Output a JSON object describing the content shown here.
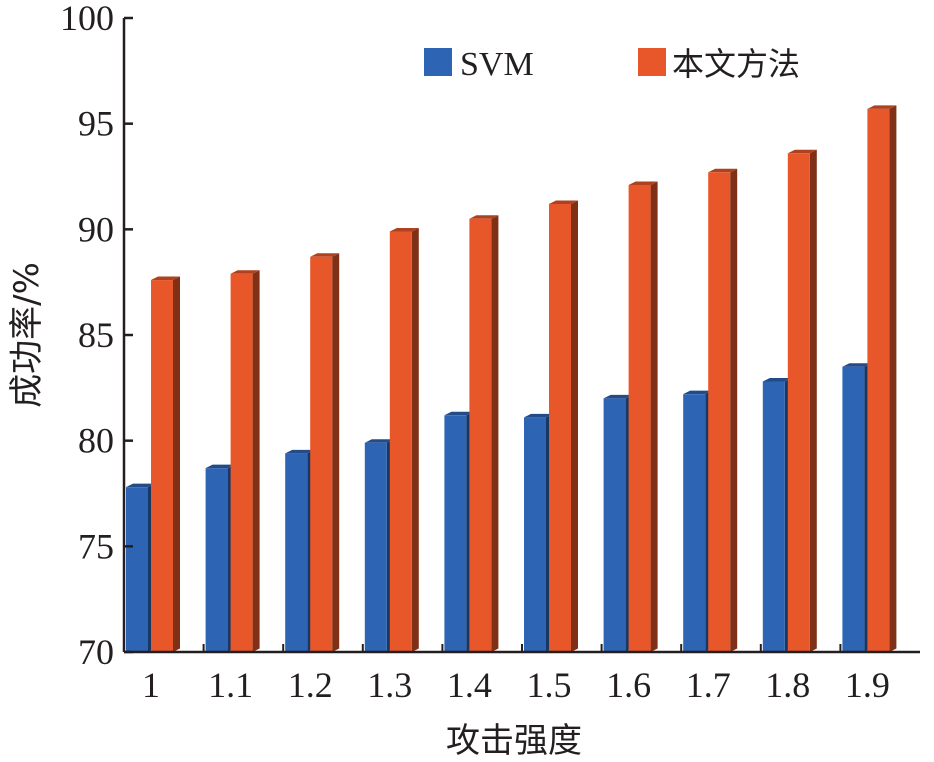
{
  "chart_data": {
    "type": "bar",
    "categories": [
      "1",
      "1.1",
      "1.2",
      "1.3",
      "1.4",
      "1.5",
      "1.6",
      "1.7",
      "1.8",
      "1.9"
    ],
    "series": [
      {
        "name": "SVM",
        "color": "#2e64b4",
        "values": [
          77.8,
          78.7,
          79.4,
          79.9,
          81.2,
          81.1,
          82.0,
          82.2,
          82.8,
          83.5
        ]
      },
      {
        "name": "本文方法",
        "color": "#e8572a",
        "values": [
          87.6,
          87.9,
          88.7,
          89.9,
          90.5,
          91.2,
          92.1,
          92.7,
          93.6,
          95.7
        ]
      }
    ],
    "xlabel": "攻击强度",
    "ylabel": "成功率/%",
    "ylim": [
      70,
      100
    ],
    "yticks": [
      "70",
      "75",
      "80",
      "85",
      "90",
      "95",
      "100"
    ],
    "grid": false,
    "legend": "top-right"
  }
}
